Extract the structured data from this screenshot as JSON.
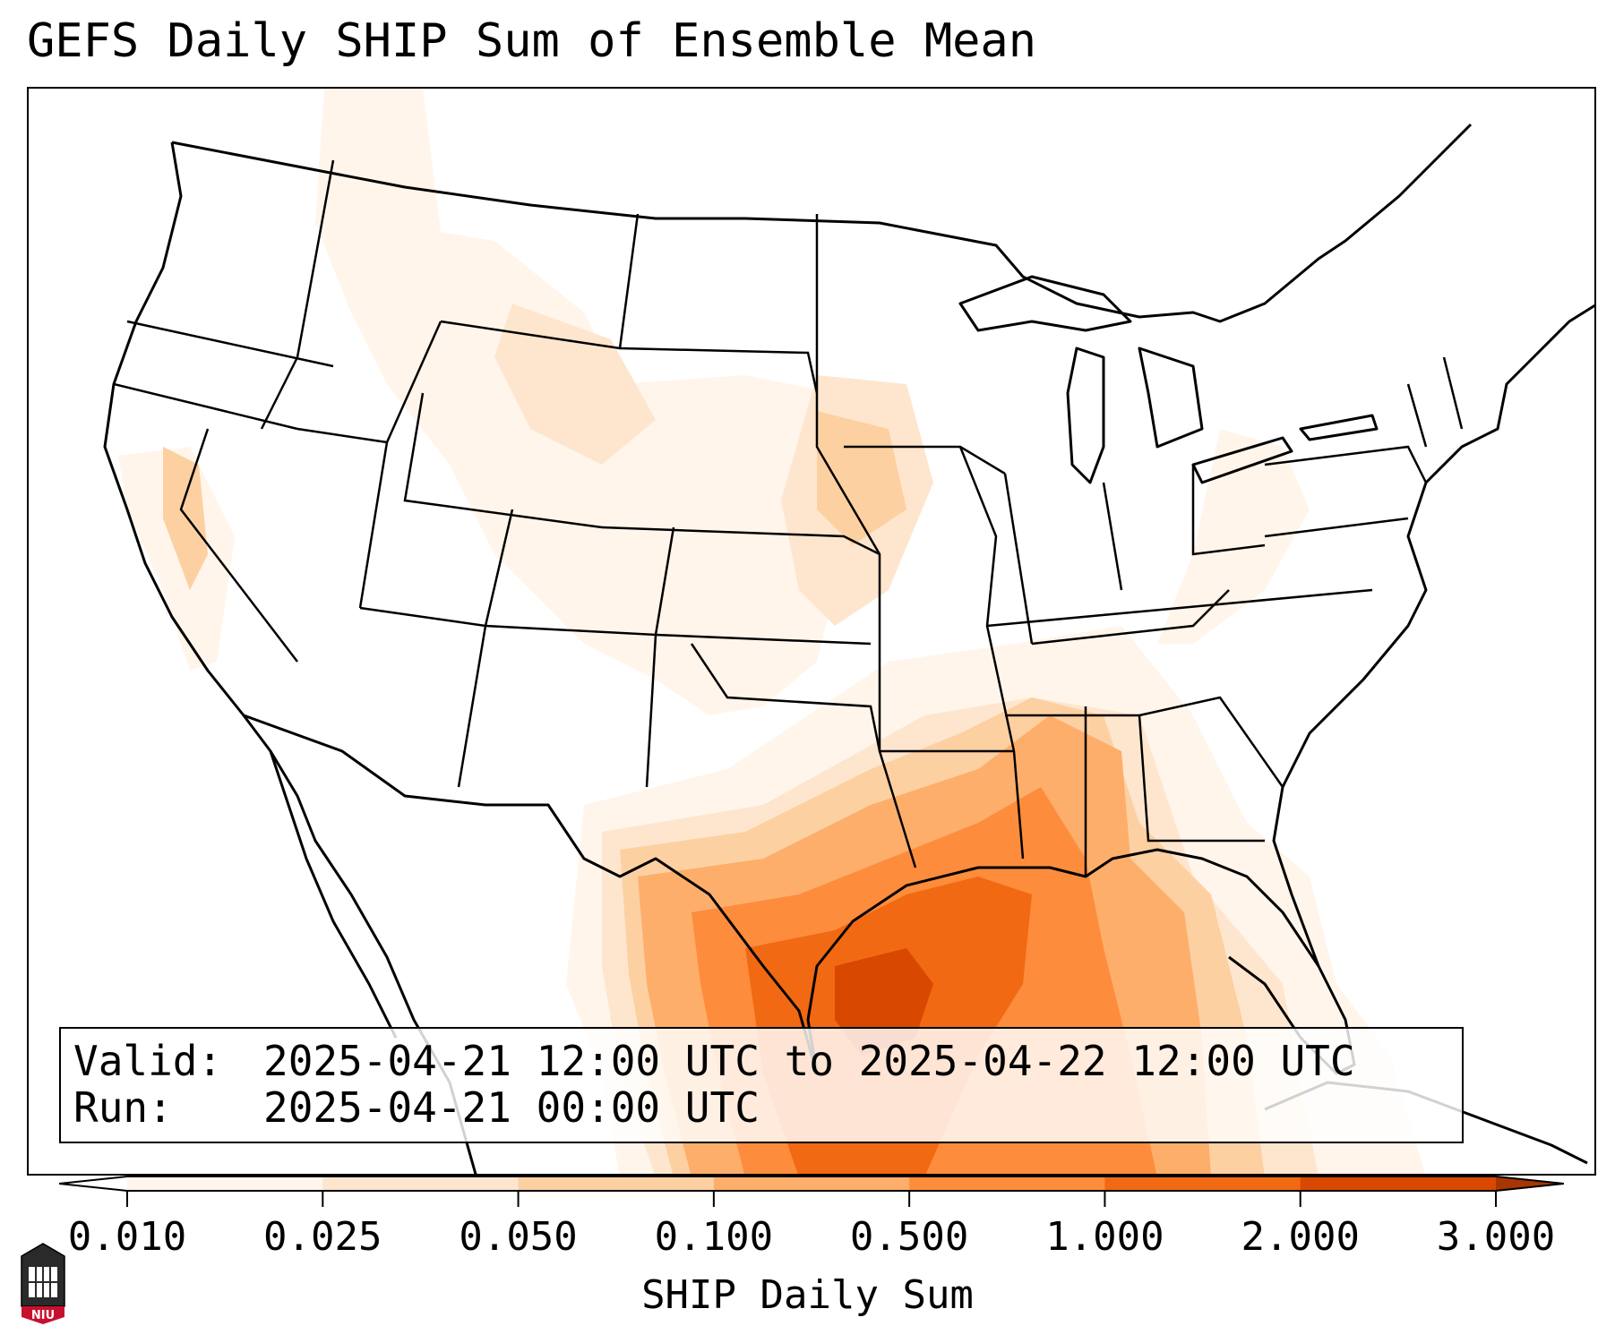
{
  "title": "GEFS Daily SHIP Sum of Ensemble Mean",
  "info": {
    "valid_label": "Valid:",
    "valid_value": "2025-04-21 12:00 UTC to 2025-04-22 12:00 UTC",
    "run_label": "Run:",
    "run_value": "2025-04-21 00:00 UTC"
  },
  "colorbar": {
    "label": "SHIP Daily Sum",
    "ticks": [
      "0.010",
      "0.025",
      "0.050",
      "0.100",
      "0.500",
      "1.000",
      "2.000",
      "3.000"
    ],
    "colors": [
      "#fff5eb",
      "#fee6ce",
      "#fdd0a2",
      "#fdae6b",
      "#fd8d3c",
      "#f16913",
      "#d94801"
    ],
    "over_color": "#a63603",
    "under_color": "#ffffff",
    "extend": "both"
  },
  "logo": {
    "text": "NIU",
    "color": "#c8102e"
  }
}
